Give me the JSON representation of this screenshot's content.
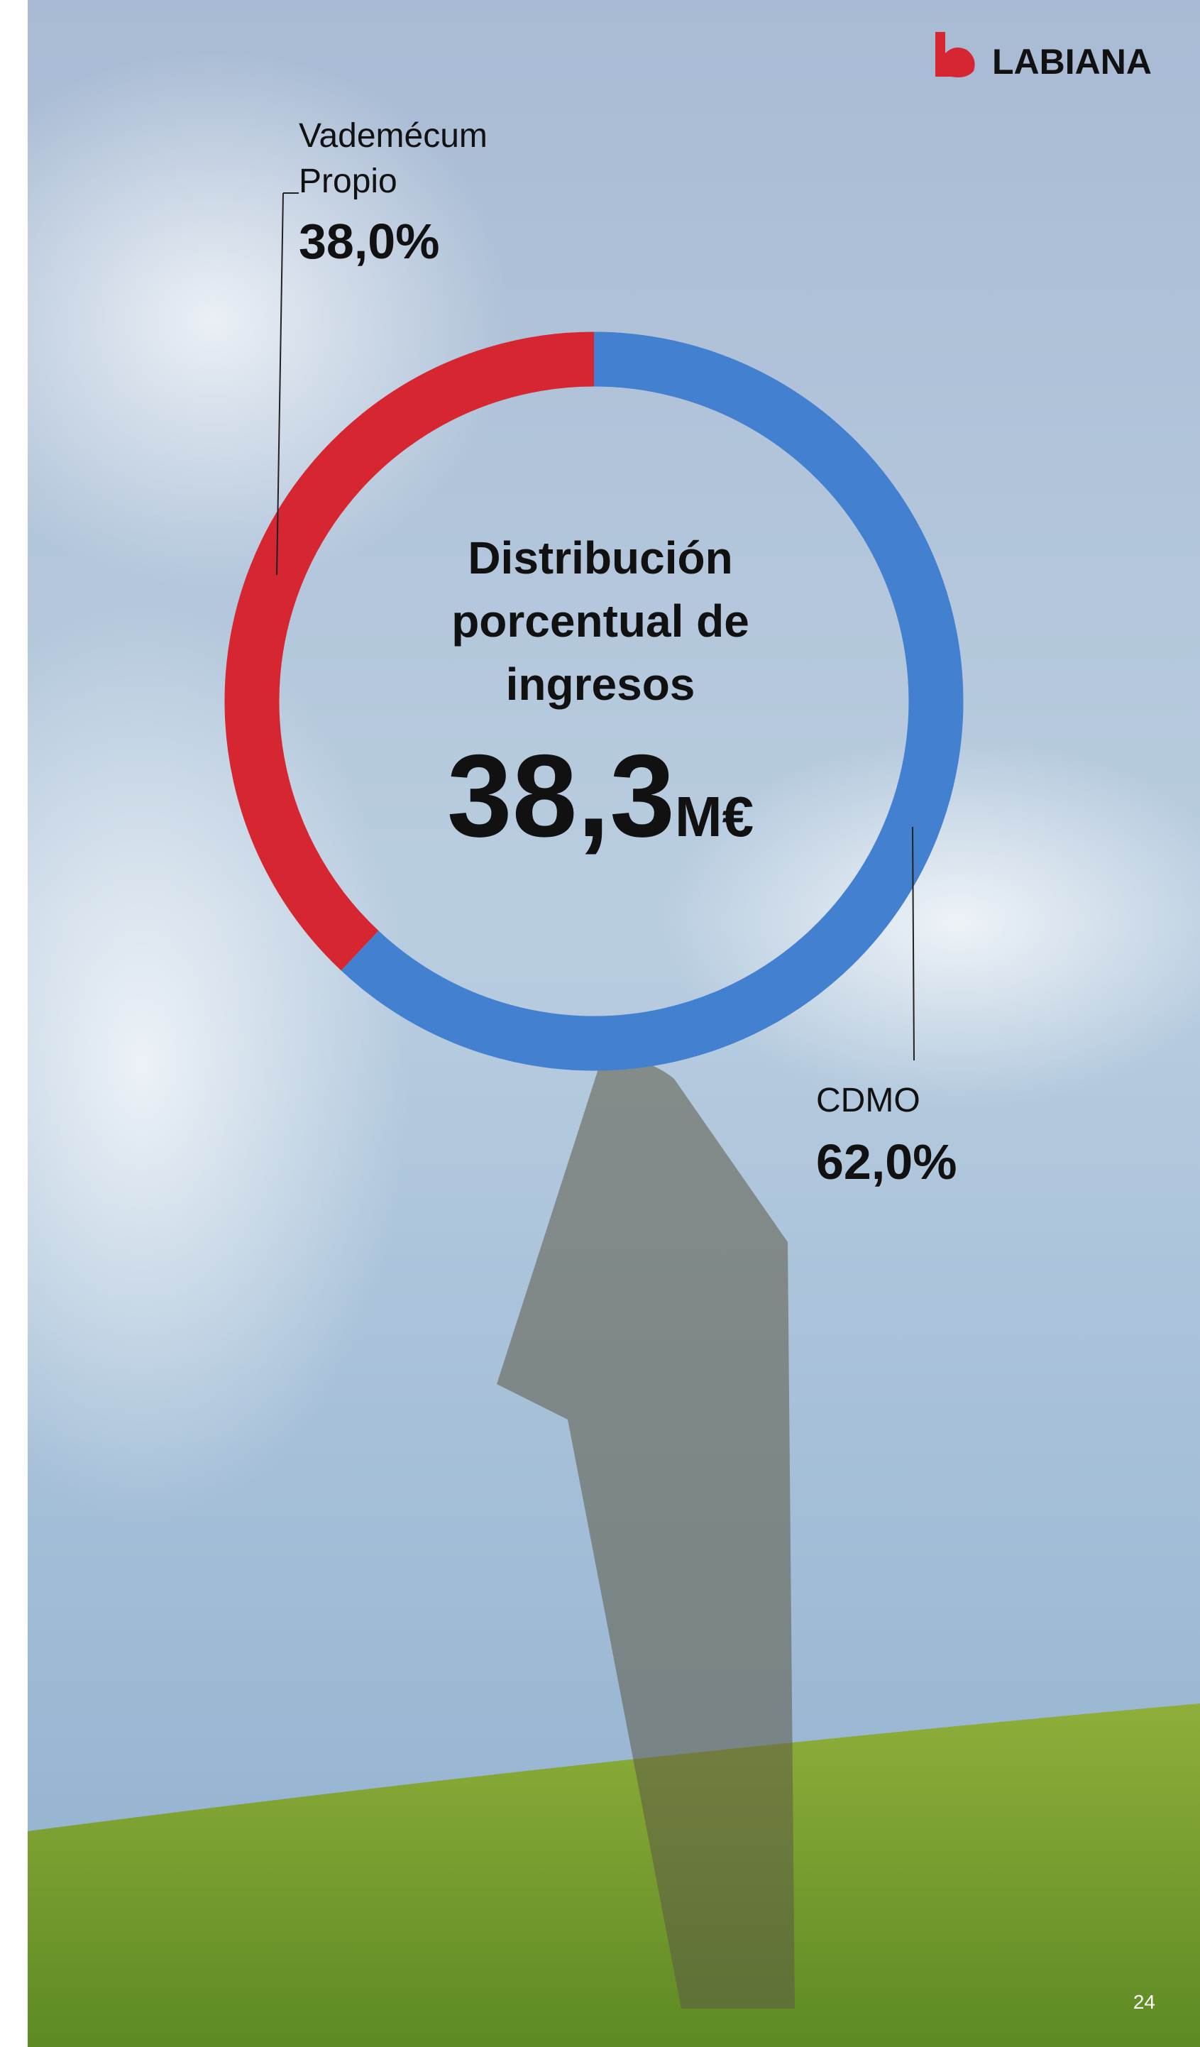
{
  "brand": "LABIANA",
  "page_number": "24",
  "chart_data": {
    "type": "donut",
    "title": "Distribución porcentual de ingresos",
    "center_value": "38,3",
    "center_unit": "M€",
    "categories": [
      "Vademécum Propio",
      "CDMO"
    ],
    "values": [
      38,
      62
    ],
    "value_labels": [
      "38,0%",
      "62,0%"
    ],
    "colors": [
      "#d52631",
      "#4380cf"
    ]
  }
}
